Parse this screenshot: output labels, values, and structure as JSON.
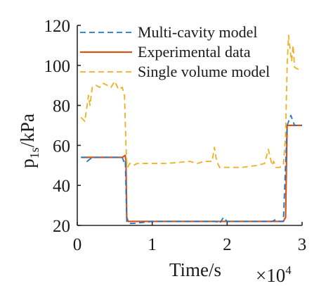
{
  "chart_data": {
    "type": "line",
    "xlabel": "Time/s",
    "ylabel_main": "p",
    "ylabel_subscript": "1s",
    "ylabel_suffix": "/kPa",
    "x_exponent_label": "×10",
    "x_exponent_power": "4",
    "xlim": [
      0,
      3
    ],
    "ylim": [
      20,
      120
    ],
    "x_ticks": [
      0,
      1,
      2,
      3
    ],
    "x_tick_labels": [
      "0",
      "1",
      "2",
      "3"
    ],
    "y_ticks": [
      20,
      40,
      60,
      80,
      100,
      120
    ],
    "y_tick_labels": [
      "20",
      "40",
      "60",
      "80",
      "100",
      "120"
    ],
    "grid": false,
    "legend_position": "top-right",
    "series": [
      {
        "name": "Multi-cavity model",
        "color": "#1f77c8",
        "style": "dashed",
        "x": [
          0.05,
          0.12,
          0.13,
          0.2,
          0.3,
          0.4,
          0.55,
          0.6,
          0.62,
          0.64,
          0.66,
          0.68,
          0.7,
          0.75,
          1.0,
          1.5,
          1.85,
          1.9,
          1.95,
          2.0,
          2.3,
          2.6,
          2.65,
          2.7,
          2.75,
          2.8,
          2.85,
          2.9,
          2.95,
          3.0
        ],
        "y": [
          54,
          54,
          52,
          54,
          54,
          54,
          54,
          54,
          52,
          53,
          22,
          22,
          21,
          21,
          22,
          22,
          22,
          21,
          24,
          22,
          22,
          22,
          23,
          22,
          22,
          70,
          75,
          70,
          70,
          70
        ]
      },
      {
        "name": "Experimental data",
        "color": "#d95319",
        "style": "solid",
        "x": [
          0.05,
          0.2,
          0.4,
          0.6,
          0.64,
          0.65,
          0.66,
          0.68,
          0.75,
          1.0,
          1.5,
          2.0,
          2.3,
          2.6,
          2.75,
          2.78,
          2.8,
          2.9,
          3.0
        ],
        "y": [
          54,
          54,
          54,
          54,
          55,
          52,
          24,
          22,
          22,
          22,
          22,
          22,
          22,
          22,
          22,
          24,
          70,
          70,
          70
        ]
      },
      {
        "name": "Single volume model",
        "color": "#edb120",
        "style": "dashed",
        "x": [
          0.05,
          0.1,
          0.15,
          0.17,
          0.2,
          0.25,
          0.3,
          0.35,
          0.4,
          0.45,
          0.5,
          0.55,
          0.6,
          0.63,
          0.65,
          0.66,
          0.67,
          0.7,
          0.75,
          0.8,
          1.0,
          1.2,
          1.5,
          1.6,
          1.7,
          1.8,
          1.83,
          1.86,
          1.9,
          1.95,
          2.0,
          2.2,
          2.4,
          2.5,
          2.55,
          2.6,
          2.62,
          2.65,
          2.7,
          2.75,
          2.78,
          2.8,
          2.82,
          2.84,
          2.86,
          2.88,
          2.9,
          2.95,
          3.0
        ],
        "y": [
          74,
          72,
          85,
          80,
          89,
          90,
          89,
          91,
          90,
          89,
          92,
          88,
          89,
          85,
          60,
          52,
          49,
          51,
          50,
          51,
          51,
          51,
          52,
          51,
          52,
          52,
          59,
          52,
          49,
          49,
          49,
          49,
          50,
          51,
          58,
          50,
          52,
          49,
          49,
          50,
          65,
          100,
          115,
          108,
          102,
          110,
          99,
          98,
          98
        ]
      }
    ]
  }
}
